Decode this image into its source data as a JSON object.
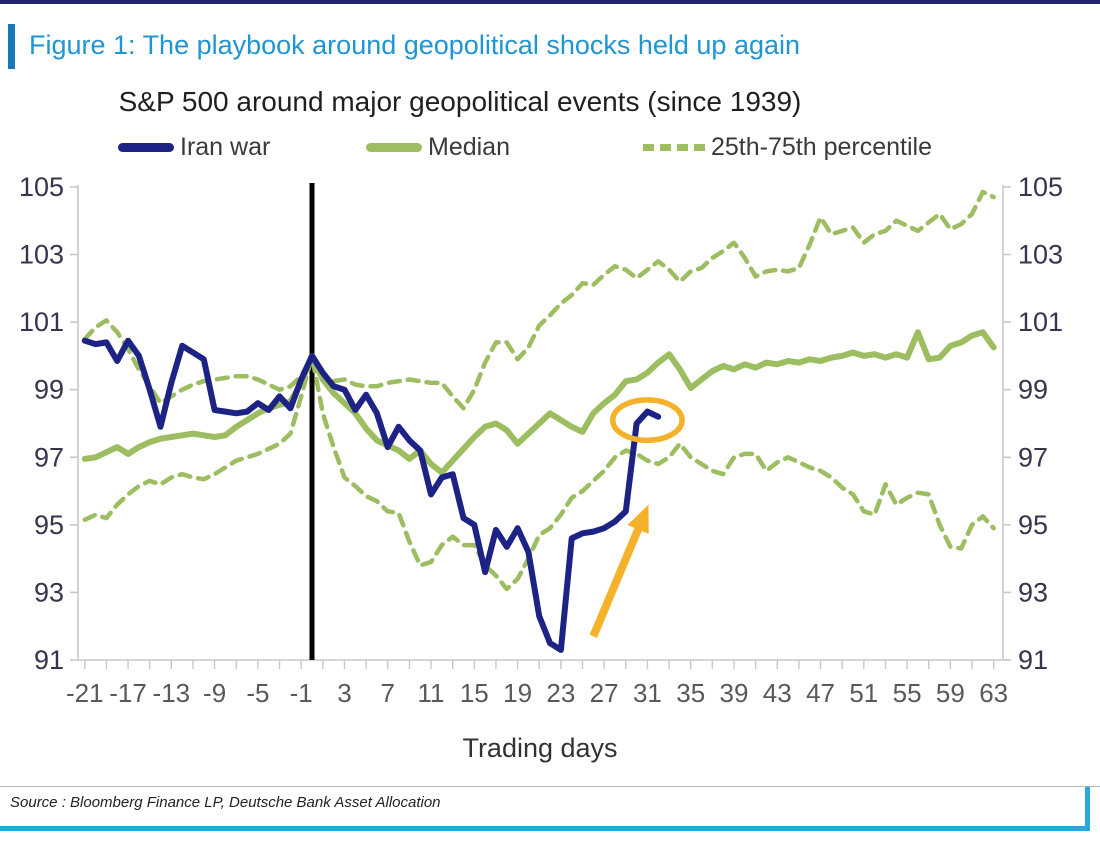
{
  "header": {
    "figure_title": "Figure 1: The playbook around geopolitical shocks held up again"
  },
  "chart": {
    "title": "S&P 500 around major geopolitical events (since 1939)",
    "xlabel": "Trading days",
    "legend": [
      {
        "label": "Iran war"
      },
      {
        "label": "Median"
      },
      {
        "label": "25th-75th percentile"
      }
    ]
  },
  "footer": {
    "source": "Source : Bloomberg Finance LP, Deutsche Bank Asset Allocation"
  },
  "colors": {
    "iran_navy": "#1d2384",
    "median_green": "#9cbd60",
    "annotation_yellow": "#f3b229",
    "event_line_black": "#000000",
    "figure_title_blue": "#2095d3",
    "header_bar_blue": "#1778b5",
    "top_rule_navy": "#23246e",
    "footer_blue": "#2aa7df",
    "axis_gray": "#c8c8c8",
    "xtick_label_gray": "#595959",
    "ytick_label_dark": "#35354e"
  },
  "chart_data": {
    "type": "line",
    "title": "S&P 500 around major geopolitical events (since 1939)",
    "xlabel": "Trading days",
    "ylabel": "",
    "x_unit": "trading days relative to event",
    "xlim": [
      -21.7,
      64
    ],
    "ylim": [
      91,
      105
    ],
    "yticks": [
      105,
      103,
      101,
      99,
      97,
      95,
      93,
      91
    ],
    "xticks": [
      -21,
      -17,
      -13,
      -9,
      -5,
      -1,
      3,
      7,
      11,
      15,
      19,
      23,
      27,
      31,
      35,
      39,
      43,
      47,
      51,
      55,
      59,
      63
    ],
    "grid": false,
    "legend_position": "top",
    "series": [
      {
        "name": "75th percentile",
        "color": "#9cbd60",
        "style": "dashed",
        "width": 4.5,
        "start_day": -21,
        "values": [
          100.5,
          100.85,
          101.05,
          100.7,
          100.2,
          99.6,
          99.1,
          98.6,
          98.8,
          99.0,
          99.15,
          99.25,
          99.3,
          99.35,
          99.4,
          99.4,
          99.3,
          99.15,
          99.0,
          99.1,
          99.4,
          100.0,
          99.3,
          99.25,
          99.3,
          99.15,
          99.1,
          99.1,
          99.2,
          99.25,
          99.3,
          99.25,
          99.2,
          99.2,
          98.8,
          98.45,
          99.0,
          99.8,
          100.4,
          100.4,
          99.9,
          100.25,
          100.9,
          101.2,
          101.55,
          101.8,
          102.15,
          102.1,
          102.4,
          102.65,
          102.55,
          102.3,
          102.55,
          102.8,
          102.55,
          102.2,
          102.5,
          102.6,
          102.9,
          103.1,
          103.35,
          102.9,
          102.35,
          102.5,
          102.55,
          102.5,
          102.6,
          103.3,
          104.1,
          103.6,
          103.7,
          103.8,
          103.35,
          103.6,
          103.7,
          104.0,
          103.85,
          103.7,
          103.95,
          104.2,
          103.75,
          103.9,
          104.2,
          104.85,
          104.7
        ]
      },
      {
        "name": "25th percentile",
        "color": "#9cbd60",
        "style": "dashed",
        "width": 4.5,
        "start_day": -21,
        "values": [
          95.15,
          95.3,
          95.2,
          95.6,
          95.9,
          96.15,
          96.3,
          96.2,
          96.4,
          96.5,
          96.4,
          96.35,
          96.5,
          96.7,
          96.9,
          97.0,
          97.1,
          97.25,
          97.4,
          97.7,
          98.8,
          100.0,
          98.3,
          97.3,
          96.4,
          96.15,
          95.85,
          95.7,
          95.4,
          95.35,
          94.5,
          93.8,
          93.9,
          94.4,
          94.65,
          94.4,
          94.4,
          93.8,
          93.5,
          93.1,
          93.4,
          94.0,
          94.7,
          94.9,
          95.3,
          95.8,
          96.0,
          96.3,
          96.6,
          97.0,
          97.2,
          97.1,
          96.9,
          96.8,
          97.0,
          97.4,
          97.0,
          96.8,
          96.6,
          96.5,
          97.0,
          97.1,
          97.1,
          96.6,
          96.85,
          97.0,
          96.85,
          96.7,
          96.6,
          96.4,
          96.1,
          95.9,
          95.4,
          95.3,
          96.2,
          95.6,
          95.8,
          95.95,
          95.9,
          95.0,
          94.35,
          94.3,
          95.0,
          95.25,
          94.9
        ]
      },
      {
        "name": "Median",
        "color": "#9cbd60",
        "style": "solid",
        "width": 6,
        "start_day": -21,
        "values": [
          96.95,
          97.0,
          97.15,
          97.3,
          97.1,
          97.3,
          97.45,
          97.55,
          97.6,
          97.65,
          97.7,
          97.65,
          97.6,
          97.65,
          97.9,
          98.1,
          98.3,
          98.45,
          98.55,
          98.65,
          99.2,
          100.0,
          99.3,
          98.9,
          98.6,
          98.3,
          97.85,
          97.5,
          97.35,
          97.2,
          96.95,
          97.2,
          96.8,
          96.55,
          96.9,
          97.25,
          97.6,
          97.9,
          98.0,
          97.8,
          97.4,
          97.7,
          98.0,
          98.3,
          98.1,
          97.9,
          97.75,
          98.3,
          98.6,
          98.85,
          99.25,
          99.3,
          99.5,
          99.8,
          100.05,
          99.6,
          99.05,
          99.3,
          99.55,
          99.7,
          99.6,
          99.75,
          99.65,
          99.8,
          99.75,
          99.85,
          99.8,
          99.9,
          99.85,
          99.95,
          100.0,
          100.1,
          100.0,
          100.05,
          99.95,
          100.05,
          99.95,
          100.7,
          99.9,
          99.95,
          100.3,
          100.4,
          100.6,
          100.7,
          100.25
        ]
      },
      {
        "name": "Iran war",
        "color": "#1d2384",
        "style": "solid",
        "width": 6,
        "start_day": -21,
        "values": [
          100.45,
          100.35,
          100.4,
          99.85,
          100.45,
          100.0,
          99.0,
          97.9,
          99.2,
          100.3,
          100.1,
          99.9,
          98.4,
          98.35,
          98.3,
          98.35,
          98.6,
          98.4,
          98.8,
          98.45,
          99.3,
          100.0,
          99.5,
          99.1,
          99.0,
          98.4,
          98.85,
          98.3,
          97.3,
          97.9,
          97.5,
          97.2,
          95.9,
          96.4,
          96.5,
          95.2,
          95.0,
          93.6,
          94.85,
          94.35,
          94.9,
          94.2,
          92.3,
          91.5,
          91.3,
          94.6,
          94.75,
          94.8,
          94.9,
          95.1,
          95.4,
          98.0,
          98.35,
          98.2
        ]
      }
    ],
    "annotations": {
      "event_vline_day": 0,
      "ellipse": {
        "day": 31,
        "value": 98.1,
        "rx_days": 3.2,
        "ry_units": 0.6,
        "color": "#f3b229"
      },
      "arrow": {
        "from_day": 26.0,
        "from_value": 91.7,
        "to_day": 31.1,
        "to_value": 95.6,
        "color": "#f3b229"
      }
    }
  }
}
